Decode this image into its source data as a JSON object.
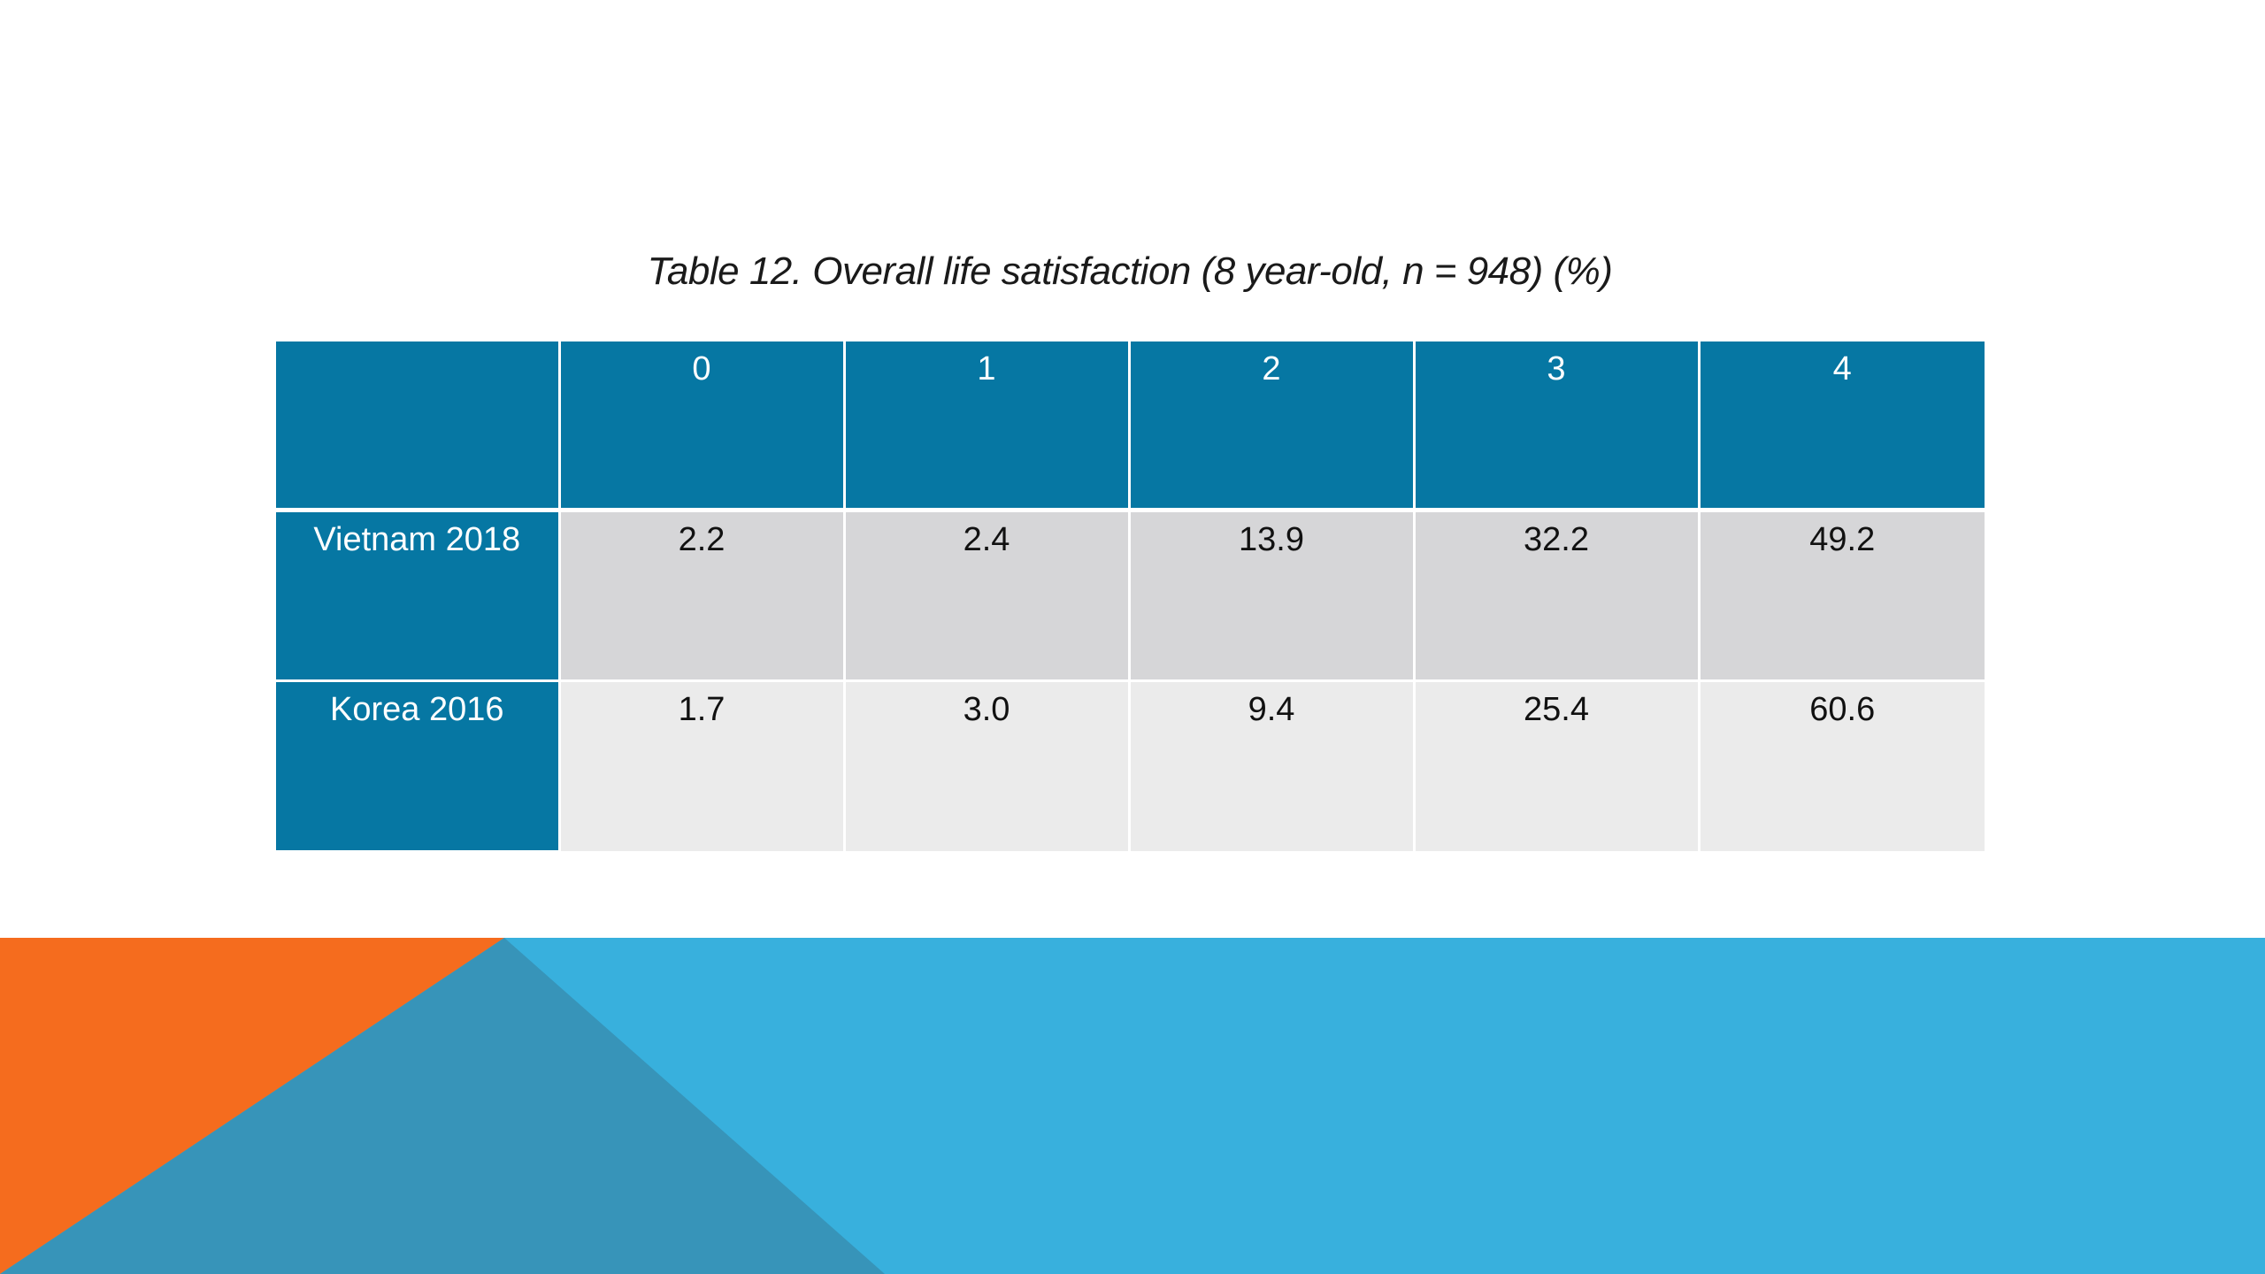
{
  "slide": {
    "caption": "Table 12. Overall life satisfaction (8 year-old, n = 948) (%)"
  },
  "table": {
    "columns": [
      "",
      "0",
      "1",
      "2",
      "3",
      "4"
    ],
    "rows": [
      {
        "label": "Vietnam 2018",
        "values": [
          "2.2",
          "2.4",
          "13.9",
          "32.2",
          "49.2"
        ]
      },
      {
        "label": "Korea 2016",
        "values": [
          "1.7",
          "3.0",
          "9.4",
          "25.4",
          "60.6"
        ]
      }
    ]
  },
  "colors": {
    "header_blue": "#0677a3",
    "row_a": "#d6d6d8",
    "row_b": "#ebebeb",
    "band_light_blue": "#38b0dd",
    "band_orange": "#f56c1e",
    "band_steel_blue": "#3794b9"
  }
}
